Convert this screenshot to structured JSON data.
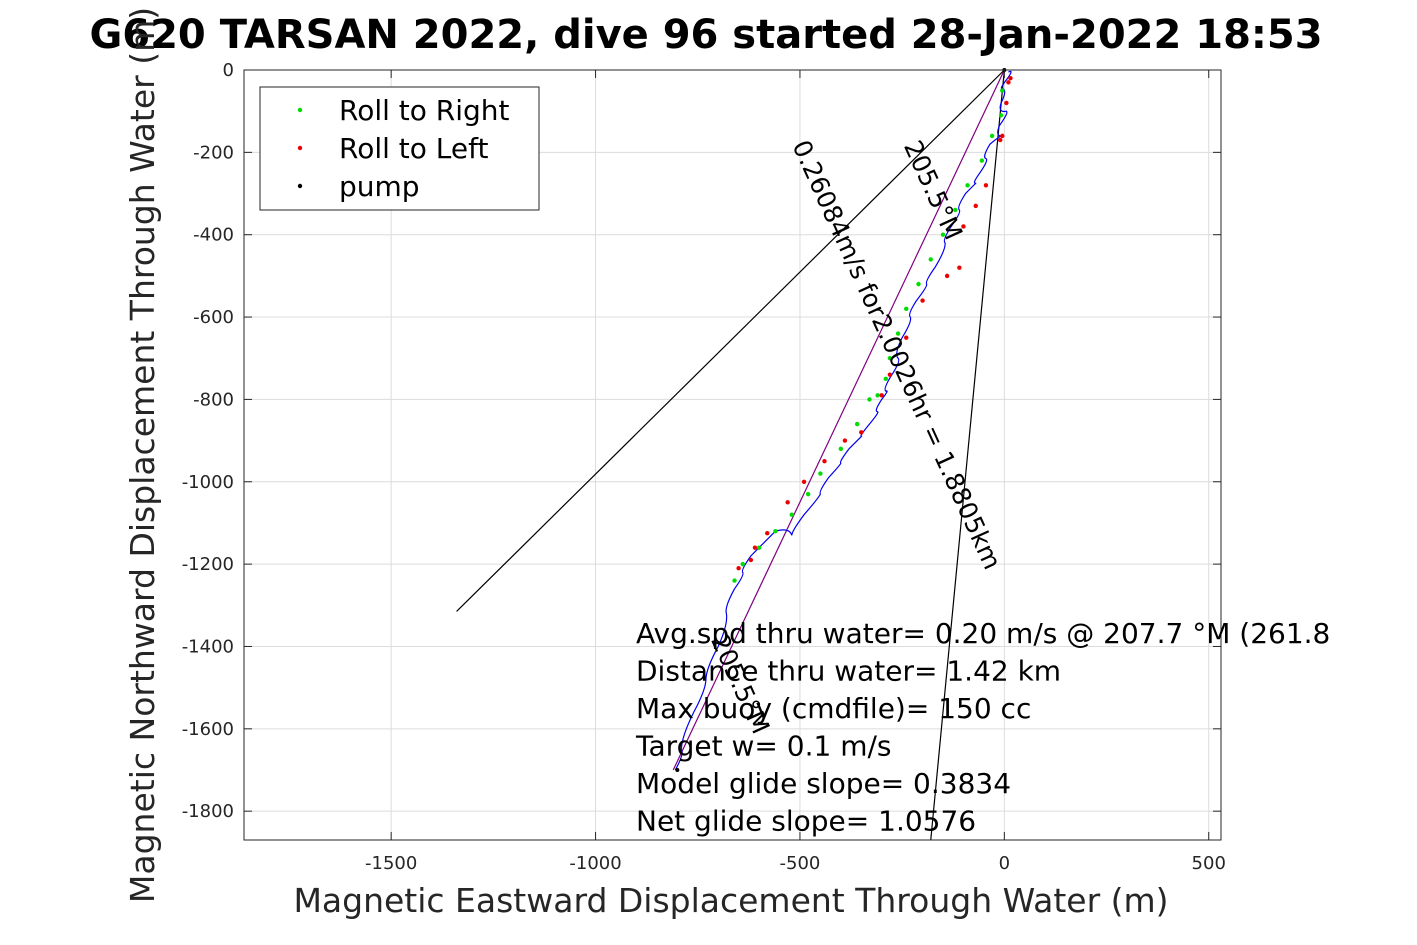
{
  "chart_data": {
    "type": "line",
    "title": "G620 TARSAN 2022, dive 96 started 28-Jan-2022 18:53",
    "xlabel": "Magnetic Eastward Displacement Through Water (m)",
    "ylabel": "Magnetic Northward Displacement Through Water (m)",
    "xlim": [
      -1860,
      530
    ],
    "ylim": [
      -1870,
      0
    ],
    "xticks": [
      -1500,
      -1000,
      -500,
      0,
      500
    ],
    "yticks": [
      0,
      -200,
      -400,
      -600,
      -800,
      -1000,
      -1200,
      -1400,
      -1600,
      -1800
    ],
    "grid": true,
    "legend_position": "top-left",
    "legend": [
      {
        "label": "Roll to Right",
        "color": "#00dd00",
        "marker": "dot"
      },
      {
        "label": "Roll to Left",
        "color": "#ee0000",
        "marker": "dot"
      },
      {
        "label": "pump",
        "color": "#000000",
        "marker": "dot"
      }
    ],
    "track": {
      "color": "#0000ee",
      "x": [
        10,
        8,
        -5,
        -8,
        5,
        -12,
        -5,
        -35,
        -45,
        -60,
        -70,
        -95,
        -110,
        -130,
        -145,
        -170,
        -190,
        -215,
        -230,
        -250,
        -260,
        -275,
        -290,
        -300,
        -310,
        -330,
        -350,
        -380,
        -400,
        -430,
        -450,
        -490,
        -520,
        -560,
        -590,
        -620,
        -640,
        -660,
        -680,
        -700,
        -730,
        -760,
        -790,
        -805
      ],
      "y": [
        -5,
        -20,
        -45,
        -80,
        -100,
        -135,
        -160,
        -180,
        -215,
        -250,
        -275,
        -300,
        -340,
        -380,
        -420,
        -480,
        -520,
        -560,
        -600,
        -650,
        -700,
        -740,
        -780,
        -800,
        -830,
        -860,
        -890,
        -920,
        -955,
        -990,
        -1030,
        -1080,
        -1130,
        -1120,
        -1150,
        -1180,
        -1220,
        -1260,
        -1320,
        -1400,
        -1480,
        -1560,
        -1650,
        -1700
      ]
    },
    "roll_right_points": {
      "x": [
        -5,
        -8,
        -30,
        -55,
        -90,
        -120,
        -150,
        -180,
        -210,
        -240,
        -260,
        -280,
        -290,
        -310,
        -330,
        -360,
        -400,
        -450,
        -480,
        -520,
        -560,
        -600,
        -640,
        -660
      ],
      "y": [
        -50,
        -110,
        -160,
        -220,
        -280,
        -340,
        -400,
        -460,
        -520,
        -580,
        -640,
        -700,
        -750,
        -790,
        -800,
        -860,
        -920,
        -980,
        -1030,
        -1080,
        -1120,
        -1160,
        -1200,
        -1240
      ]
    },
    "roll_left_points": {
      "x": [
        15,
        10,
        5,
        -5,
        -10,
        -45,
        -70,
        -100,
        -110,
        -140,
        -200,
        -240,
        -280,
        -300,
        -350,
        -390,
        -440,
        -490,
        -530,
        -580,
        -610,
        -620,
        -650
      ],
      "y": [
        -20,
        -30,
        -80,
        -160,
        -170,
        -280,
        -330,
        -380,
        -480,
        -500,
        -560,
        -650,
        -740,
        -790,
        -880,
        -900,
        -950,
        -1000,
        -1050,
        -1125,
        -1160,
        -1190,
        -1210
      ]
    },
    "pump_points": {
      "x": [
        0,
        -800
      ],
      "y": [
        0,
        -1700
      ]
    },
    "reference_lines": [
      {
        "name": "",
        "x": [
          0,
          -1340
        ],
        "y": [
          0,
          -1315
        ],
        "color": "#000000"
      },
      {
        "name": "",
        "x": [
          0,
          -180
        ],
        "y": [
          0,
          -1870
        ],
        "color": "#000000"
      },
      {
        "name": "",
        "x": [
          0,
          -810
        ],
        "y": [
          0,
          -1700
        ],
        "color": "#800080"
      }
    ],
    "rotated_labels": [
      {
        "text": "0.26084m/s for2.0026hr = 1.8805km",
        "anchor": "-282,-700",
        "angle": 65.5
      },
      {
        "text": "205.5°M",
        "anchor": "-193,-300",
        "angle": 65.5
      },
      {
        "text": "205.5°M",
        "anchor": "-665,-1500",
        "angle": 65.5
      }
    ],
    "annotations": [
      "Avg.spd thru water=  0.20 m/s @ 207.7 °M (261.8",
      "Distance thru water=  1.42 km",
      "Max buoy (cmdfile)= 150 cc",
      "Target w= 0.1 m/s",
      "Model glide slope= 0.3834",
      "Net glide slope= 1.0576"
    ]
  }
}
